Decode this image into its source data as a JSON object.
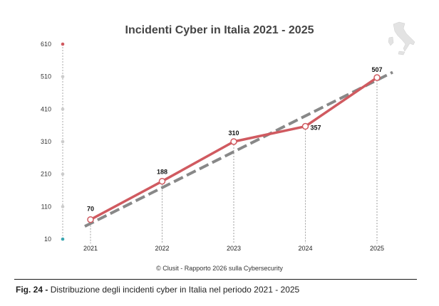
{
  "chart_data": {
    "type": "line",
    "title": "Incidenti Cyber in Italia 2021 - 2025",
    "categories": [
      "2021",
      "2022",
      "2023",
      "2024",
      "2025"
    ],
    "series": [
      {
        "values": [
          70,
          188,
          310,
          357,
          507
        ],
        "color": "#d05a60"
      }
    ],
    "trendline": {
      "style": "dashed",
      "color": "#888888",
      "values": [
        58,
        170,
        282,
        394,
        506
      ]
    },
    "y_ticks": [
      10,
      110,
      210,
      310,
      410,
      510,
      610
    ],
    "ylim": [
      10,
      610
    ],
    "grid": "vertical dashed drop lines at each year",
    "legend": "none",
    "credit": "© Clusit - Rapporto 2026 sulla Cybersecurity",
    "y_axis_top_dot_color": "#d05a60",
    "y_axis_bottom_dot_color": "#3ba6b0"
  },
  "caption": {
    "label": "Fig. 24 -",
    "text": "Distribuzione degli incidenti cyber in Italia nel periodo 2021 - 2025"
  },
  "decoration": {
    "map_icon": "italy-map-icon"
  }
}
